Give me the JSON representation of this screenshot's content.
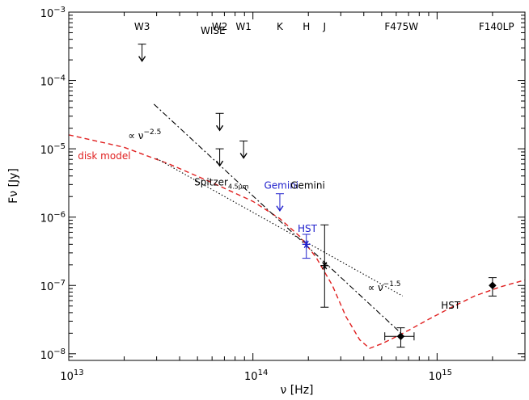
{
  "chart_data": {
    "type": "scatter",
    "title": "",
    "xlabel": "ν [Hz]",
    "ylabel": "Fν [Jy]",
    "xscale": "log",
    "yscale": "log",
    "xlim": [
      10000000000000.0,
      3000000000000000.0
    ],
    "ylim": [
      8e-09,
      0.001
    ],
    "x_tick_labels": [
      {
        "value": 10000000000000.0,
        "base": "10",
        "exp": "13"
      },
      {
        "value": 100000000000000.0,
        "base": "10",
        "exp": "14"
      },
      {
        "value": 1000000000000000.0,
        "base": "10",
        "exp": "15"
      }
    ],
    "y_tick_labels": [
      {
        "value": 1e-08,
        "base": "10",
        "exp": "−8"
      },
      {
        "value": 1e-07,
        "base": "10",
        "exp": "−7"
      },
      {
        "value": 1e-06,
        "base": "10",
        "exp": "−6"
      },
      {
        "value": 1e-05,
        "base": "10",
        "exp": "−5"
      },
      {
        "value": 0.0001,
        "base": "10",
        "exp": "−4"
      },
      {
        "value": 0.001,
        "base": "10",
        "exp": "−3"
      }
    ],
    "band_labels": [
      {
        "text": "W3",
        "x": 25000000000000.0
      },
      {
        "text": "W2",
        "x": 66000000000000.0
      },
      {
        "text": "W1",
        "x": 89000000000000.0
      },
      {
        "text": "K",
        "x": 140000000000000.0
      },
      {
        "text": "H",
        "x": 195000000000000.0
      },
      {
        "text": "J",
        "x": 245000000000000.0
      },
      {
        "text": "F475W",
        "x": 640000000000000.0
      },
      {
        "text": "F140LP",
        "x": 2100000000000000.0
      }
    ],
    "upper_limits": [
      {
        "name": "WISE W3",
        "x": 25000000000000.0,
        "y": 0.00034,
        "color": "#000000"
      },
      {
        "name": "Spitzer 3.6",
        "x": 66000000000000.0,
        "y": 3.3e-05,
        "color": "#000000"
      },
      {
        "name": "Spitzer 4.5",
        "x": 66000000000000.0,
        "y": 1e-05,
        "color": "#000000"
      },
      {
        "name": "WISE W1",
        "x": 89000000000000.0,
        "y": 1.3e-05,
        "color": "#000000"
      },
      {
        "name": "Gemini K",
        "x": 140000000000000.0,
        "y": 2.2e-06,
        "color": "#2020cc"
      }
    ],
    "detections": [
      {
        "name": "HST H",
        "x": 195000000000000.0,
        "y": 4e-07,
        "yerr": [
          2.5e-07,
          5.6e-07
        ],
        "marker": "asterisk",
        "color": "#2020cc"
      },
      {
        "name": "Gemini J",
        "x": 245000000000000.0,
        "y": 1.95e-07,
        "yerr": [
          4.8e-08,
          7.7e-07
        ],
        "marker": "asterisk",
        "color": "#000000"
      },
      {
        "name": "HST F475W",
        "x": 635000000000000.0,
        "y": 1.8e-08,
        "yerr": [
          1.25e-08,
          2.4e-08
        ],
        "xerr": [
          520000000000000.0,
          750000000000000.0
        ],
        "marker": "diamond",
        "color": "#000000"
      },
      {
        "name": "HST F140LP",
        "x": 2000000000000000.0,
        "y": 1e-07,
        "yerr": [
          7e-08,
          1.3e-07
        ],
        "marker": "diamond",
        "color": "#000000"
      }
    ],
    "series": [
      {
        "name": "disk model",
        "style": "dashed",
        "color": "#e02020",
        "x": [
          10000000000000.0,
          20000000000000.0,
          35000000000000.0,
          60000000000000.0,
          100000000000000.0,
          140000000000000.0,
          180000000000000.0,
          220000000000000.0,
          270000000000000.0,
          320000000000000.0,
          380000000000000.0,
          430000000000000.0,
          500000000000000.0,
          580000000000000.0,
          700000000000000.0,
          900000000000000.0,
          1200000000000000.0,
          1600000000000000.0,
          2200000000000000.0,
          3000000000000000.0
        ],
        "y": [
          1.6e-05,
          1.05e-05,
          6e-06,
          3.2e-06,
          1.7e-06,
          9.5e-07,
          5.2e-07,
          2.6e-07,
          1e-07,
          3.5e-08,
          1.6e-08,
          1.2e-08,
          1.4e-08,
          1.7e-08,
          2.2e-08,
          3.2e-08,
          4.8e-08,
          7e-08,
          9.5e-08,
          1.2e-07
        ]
      },
      {
        "name": "power law ν^-2.5",
        "style": "dashdot",
        "color": "#000000",
        "x": [
          29000000000000.0,
          650000000000000.0
        ],
        "y": [
          4.5e-05,
          1.9e-08
        ]
      },
      {
        "name": "power law ν^-1.5",
        "style": "dotted",
        "color": "#000000",
        "x": [
          30000000000000.0,
          650000000000000.0
        ],
        "y": [
          7.2e-06,
          7e-08
        ]
      }
    ],
    "annotations": [
      {
        "text": "WISE",
        "x": 52000000000000.0,
        "y": 0.00048,
        "color": "#000000"
      },
      {
        "text": "∝ ν",
        "sup": "−2.5",
        "x": 21000000000000.0,
        "y": 1.4e-05,
        "color": "#000000"
      },
      {
        "text": "disk model",
        "x": 11200000000000.0,
        "y": 7e-06,
        "color": "#e02020"
      },
      {
        "text": "Spitzer",
        "sub": "4.5μm",
        "x": 48000000000000.0,
        "y": 2.9e-06,
        "color": "#000000"
      },
      {
        "text": "Gemini",
        "x": 115000000000000.0,
        "y": 2.6e-06,
        "color": "#2020cc"
      },
      {
        "text": "Gemini",
        "x": 160000000000000.0,
        "y": 2.6e-06,
        "color": "#000000"
      },
      {
        "text": "HST",
        "x": 175000000000000.0,
        "y": 6.1e-07,
        "color": "#2020cc"
      },
      {
        "text": "∝ ν",
        "sup": "−1.5",
        "x": 420000000000000.0,
        "y": 8.3e-08,
        "color": "#000000"
      },
      {
        "text": "HST",
        "x": 1050000000000000.0,
        "y": 4.6e-08,
        "color": "#000000"
      }
    ]
  }
}
